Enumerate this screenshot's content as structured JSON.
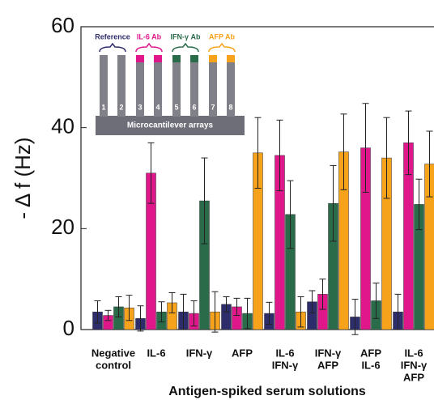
{
  "chart_data": {
    "type": "bar",
    "x_label": "Antigen-spiked serum solutions",
    "y_label": "- Δ f (Hz)",
    "categories": [
      [
        "Negative",
        "control"
      ],
      [
        "IL-6"
      ],
      [
        "IFN-γ"
      ],
      [
        "AFP"
      ],
      [
        "IL-6",
        "IFN-γ"
      ],
      [
        "IFN-γ",
        "AFP"
      ],
      [
        "AFP",
        "IL-6"
      ],
      [
        "IL-6",
        "IFN-γ",
        "AFP"
      ]
    ],
    "series": [
      {
        "name": "Reference",
        "color": "#2e2d6b",
        "values": [
          3.5,
          2.2,
          3.5,
          5,
          3.2,
          5.5,
          2.5,
          3.5
        ],
        "errors": [
          2.2,
          2.5,
          3.5,
          1.5,
          2.2,
          2.2,
          3.5,
          3.5
        ]
      },
      {
        "name": "IL-6 Ab",
        "color": "#e0178b",
        "values": [
          2.8,
          31,
          3.2,
          4.5,
          34.5,
          7,
          36,
          37
        ],
        "errors": [
          1,
          6,
          2.5,
          1.7,
          7,
          3,
          8.8,
          6.3
        ]
      },
      {
        "name": "IFN-γ Ab",
        "color": "#2a6b4a",
        "values": [
          4.5,
          3.5,
          25.5,
          3.2,
          22.8,
          25,
          5.7,
          24.8
        ],
        "errors": [
          2,
          2,
          8.5,
          3,
          6.7,
          7.5,
          3.5,
          5
        ]
      },
      {
        "name": "AFP Ab",
        "color": "#f7a21b",
        "values": [
          4.3,
          5.3,
          3.5,
          35,
          3.5,
          35.2,
          34,
          32.8
        ],
        "errors": [
          2.5,
          2,
          4,
          7,
          3,
          7.5,
          8,
          6.5
        ]
      }
    ],
    "ylim": [
      0,
      60
    ],
    "yticks": [
      0,
      20,
      40,
      60
    ],
    "inset": {
      "numbers": [
        1,
        2,
        3,
        4,
        5,
        6,
        7,
        8
      ],
      "caption": "Microcantilever arrays"
    }
  }
}
